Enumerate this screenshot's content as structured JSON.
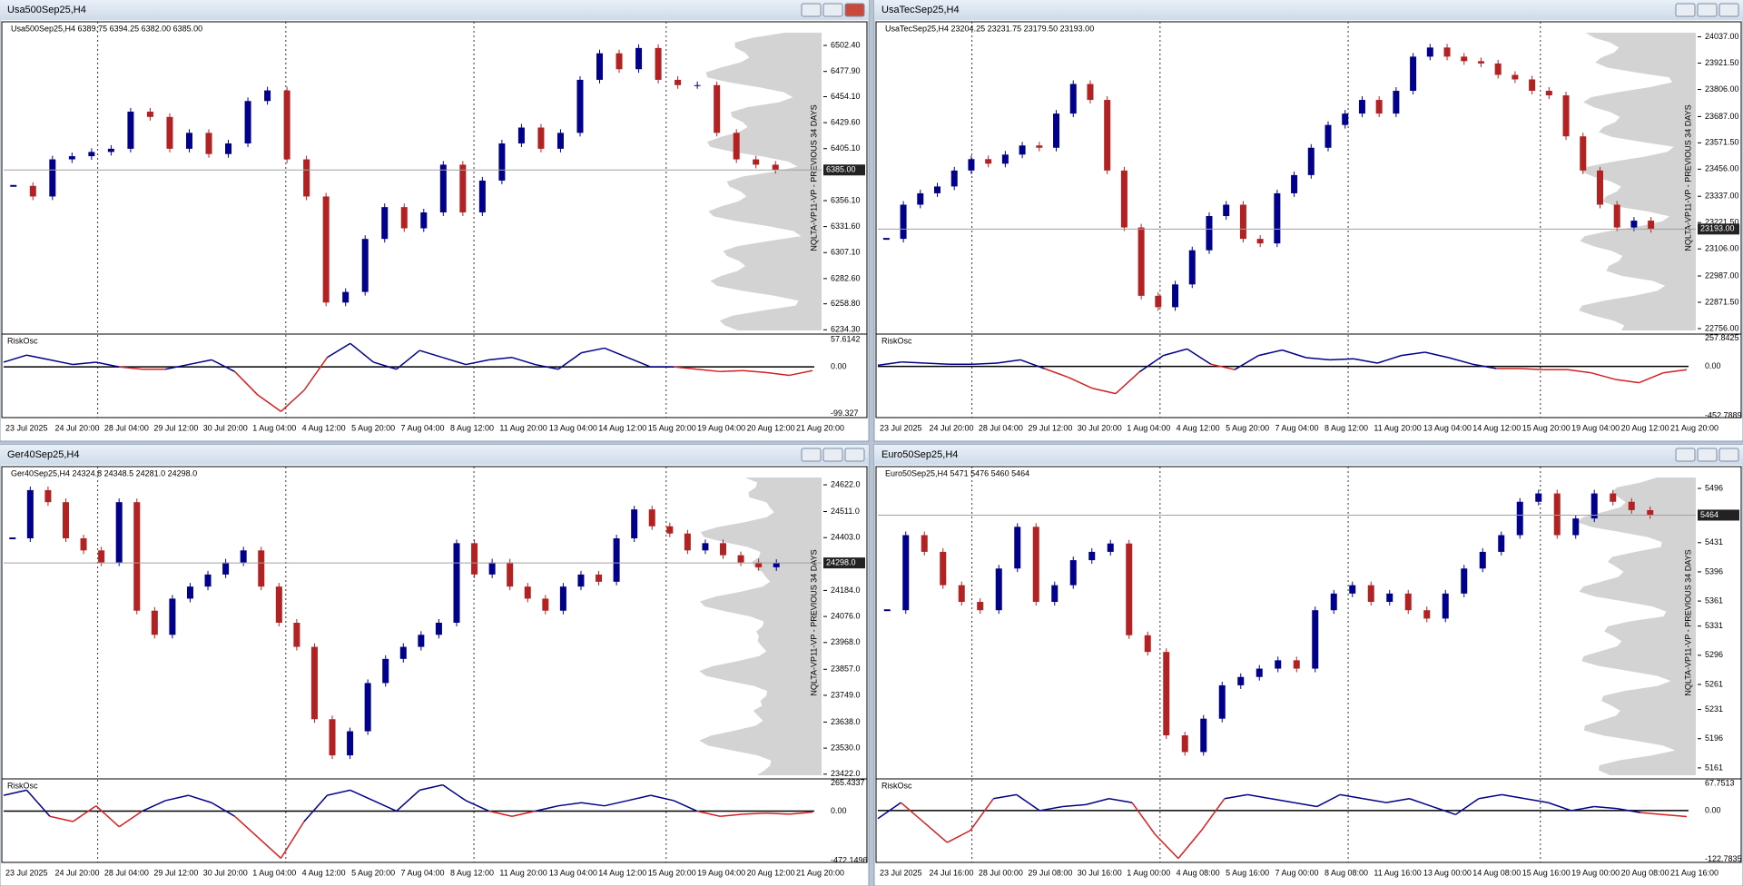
{
  "windows": [
    {
      "title": "Usa500Sep25,H4",
      "info": "Usa500Sep25,H4  6389.75 6394.25 6382.00 6385.00",
      "watermark": "NQLTA-VP11-VP - PREVIOUS 34 DAYS",
      "ylim": [
        6232,
        6523
      ],
      "yticks": [
        {
          "value": 6502.4,
          "label": "6502.40"
        },
        {
          "value": 6477.9,
          "label": "6477.90"
        },
        {
          "value": 6454.1,
          "label": "6454.10"
        },
        {
          "value": 6429.6,
          "label": "6429.60"
        },
        {
          "value": 6405.1,
          "label": "6405.10"
        },
        {
          "value": 6356.1,
          "label": "6356.10"
        },
        {
          "value": 6331.6,
          "label": "6331.60"
        },
        {
          "value": 6307.1,
          "label": "6307.10"
        },
        {
          "value": 6282.6,
          "label": "6282.60"
        },
        {
          "value": 6258.8,
          "label": "6258.80"
        },
        {
          "value": 6234.3,
          "label": "6234.30"
        }
      ],
      "current": {
        "value": 6385,
        "label": "6385.00"
      },
      "closes": [
        6370,
        6360,
        6395,
        6398,
        6402,
        6405,
        6440,
        6435,
        6405,
        6420,
        6400,
        6410,
        6450,
        6460,
        6395,
        6360,
        6260,
        6270,
        6320,
        6350,
        6330,
        6345,
        6390,
        6345,
        6375,
        6410,
        6425,
        6405,
        6420,
        6470,
        6495,
        6480,
        6500,
        6470,
        6465,
        6465,
        6420,
        6395,
        6390,
        6385
      ],
      "osc": {
        "name": "RiskOsc",
        "ylim": [
          -108,
          66
        ],
        "ticks": [
          57.6142,
          {
            "value": 0,
            "label": "0.00"
          },
          -99.327
        ],
        "values": [
          10,
          25,
          15,
          5,
          10,
          0,
          -5,
          -5,
          5,
          15,
          -10,
          -60,
          -95,
          -50,
          20,
          50,
          10,
          -5,
          35,
          20,
          5,
          15,
          20,
          5,
          -5,
          30,
          40,
          20,
          0,
          0,
          -5,
          -10,
          -8,
          -12,
          -18,
          -8
        ]
      },
      "dates": [
        "23 Jul 2025",
        "24 Jul 20:00",
        "28 Jul 04:00",
        "29 Jul 12:00",
        "30 Jul 20:00",
        "1 Aug 04:00",
        "4 Aug 12:00",
        "5 Aug 20:00",
        "7 Aug 04:00",
        "8 Aug 12:00",
        "11 Aug 20:00",
        "13 Aug 04:00",
        "14 Aug 12:00",
        "15 Aug 20:00",
        "19 Aug 04:00",
        "20 Aug 12:00",
        "21 Aug 20:00"
      ]
    },
    {
      "title": "UsaTecSep25,H4",
      "info": "UsaTecSep25,H4  23204.25 23231.75 23179.50 23193.00",
      "watermark": "NQLTA-VP11-VP - PREVIOUS 34 DAYS",
      "ylim": [
        22740,
        24095
      ],
      "yticks": [
        {
          "value": 24037,
          "label": "24037.00"
        },
        {
          "value": 23921.5,
          "label": "23921.50"
        },
        {
          "value": 23806,
          "label": "23806.00"
        },
        {
          "value": 23687,
          "label": "23687.00"
        },
        {
          "value": 23571.5,
          "label": "23571.50"
        },
        {
          "value": 23456,
          "label": "23456.00"
        },
        {
          "value": 23337,
          "label": "23337.00"
        },
        {
          "value": 23221.5,
          "label": "23221.50"
        },
        {
          "value": 23106,
          "label": "23106.00"
        },
        {
          "value": 22987,
          "label": "22987.00"
        },
        {
          "value": 22871.5,
          "label": "22871.50"
        },
        {
          "value": 22756,
          "label": "22756.00"
        }
      ],
      "current": {
        "value": 23193,
        "label": "23193.00"
      },
      "closes": [
        23150,
        23300,
        23350,
        23380,
        23450,
        23500,
        23480,
        23520,
        23560,
        23550,
        23700,
        23830,
        23760,
        23450,
        23200,
        22900,
        22850,
        22950,
        23100,
        23250,
        23300,
        23150,
        23130,
        23350,
        23430,
        23550,
        23650,
        23700,
        23760,
        23700,
        23800,
        23950,
        23990,
        23950,
        23930,
        23920,
        23870,
        23850,
        23800,
        23780,
        23600,
        23450,
        23300,
        23200,
        23230,
        23193
      ],
      "osc": {
        "name": "RiskOsc",
        "ylim": [
          -470,
          280
        ],
        "ticks": [
          257.8425,
          {
            "value": 0,
            "label": "0.00"
          },
          -452.7889
        ],
        "values": [
          10,
          40,
          30,
          20,
          20,
          30,
          60,
          -20,
          -100,
          -200,
          -250,
          -50,
          100,
          160,
          20,
          -30,
          100,
          150,
          80,
          60,
          70,
          30,
          100,
          130,
          80,
          20,
          -20,
          -20,
          -30,
          -30,
          -60,
          -120,
          -150,
          -60,
          -30
        ]
      },
      "dates": [
        "23 Jul 2025",
        "24 Jul 20:00",
        "28 Jul 04:00",
        "29 Jul 12:00",
        "30 Jul 20:00",
        "1 Aug 04:00",
        "4 Aug 12:00",
        "5 Aug 20:00",
        "7 Aug 04:00",
        "8 Aug 12:00",
        "11 Aug 20:00",
        "13 Aug 04:00",
        "14 Aug 12:00",
        "15 Aug 20:00",
        "19 Aug 04:00",
        "20 Aug 12:00",
        "21 Aug 20:00"
      ]
    },
    {
      "title": "Ger40Sep25,H4",
      "info": "Ger40Sep25,H4  24324.8 24348.5 24281.0 24298.0",
      "watermark": "NQLTA-VP11-VP - PREVIOUS 34 DAYS",
      "ylim": [
        23410,
        24690
      ],
      "yticks": [
        {
          "value": 24622,
          "label": "24622.0"
        },
        {
          "value": 24511,
          "label": "24511.0"
        },
        {
          "value": 24403,
          "label": "24403.0"
        },
        {
          "value": 24184,
          "label": "24184.0"
        },
        {
          "value": 24076,
          "label": "24076.0"
        },
        {
          "value": 23968,
          "label": "23968.0"
        },
        {
          "value": 23857,
          "label": "23857.0"
        },
        {
          "value": 23749,
          "label": "23749.0"
        },
        {
          "value": 23638,
          "label": "23638.0"
        },
        {
          "value": 23530,
          "label": "23530.0"
        },
        {
          "value": 23422,
          "label": "23422.0"
        }
      ],
      "current": {
        "value": 24298,
        "label": "24298.0"
      },
      "closes": [
        24400,
        24600,
        24550,
        24400,
        24350,
        24300,
        24550,
        24100,
        24000,
        24150,
        24200,
        24250,
        24300,
        24350,
        24200,
        24050,
        23950,
        23650,
        23500,
        23600,
        23800,
        23900,
        23950,
        24000,
        24050,
        24380,
        24250,
        24300,
        24200,
        24150,
        24100,
        24200,
        24250,
        24220,
        24400,
        24520,
        24450,
        24420,
        24350,
        24380,
        24330,
        24300,
        24280,
        24298
      ],
      "osc": {
        "name": "RiskOsc",
        "ylim": [
          -490,
          290
        ],
        "ticks": [
          265.4337,
          {
            "value": 0,
            "label": "0.00"
          },
          -472.1496
        ],
        "values": [
          150,
          200,
          -50,
          -100,
          50,
          -150,
          0,
          100,
          150,
          80,
          -50,
          -250,
          -450,
          -100,
          150,
          200,
          100,
          0,
          200,
          250,
          100,
          0,
          -50,
          0,
          50,
          80,
          50,
          100,
          150,
          100,
          0,
          -50,
          -30,
          -20,
          -30,
          -10
        ]
      },
      "dates": [
        "23 Jul 2025",
        "24 Jul 20:00",
        "28 Jul 04:00",
        "29 Jul 12:00",
        "30 Jul 20:00",
        "1 Aug 04:00",
        "4 Aug 12:00",
        "5 Aug 20:00",
        "7 Aug 04:00",
        "8 Aug 12:00",
        "11 Aug 20:00",
        "13 Aug 04:00",
        "14 Aug 12:00",
        "15 Aug 20:00",
        "19 Aug 04:00",
        "20 Aug 12:00",
        "21 Aug 20:00"
      ]
    },
    {
      "title": "Euro50Sep25,H4",
      "info": "Euro50Sep25,H4  5471 5476 5460 5464",
      "watermark": "NQLTA-VP11-VP - PREVIOUS 34 DAYS",
      "ylim": [
        5150,
        5520
      ],
      "yticks": [
        5496,
        5431,
        5396,
        5361,
        5331,
        5296,
        5261,
        5231,
        5196,
        5161
      ],
      "current": {
        "value": 5464,
        "label": "5464"
      },
      "closes": [
        5350,
        5440,
        5420,
        5380,
        5360,
        5350,
        5400,
        5450,
        5360,
        5380,
        5410,
        5420,
        5430,
        5320,
        5300,
        5200,
        5180,
        5220,
        5260,
        5270,
        5280,
        5290,
        5280,
        5350,
        5370,
        5380,
        5360,
        5370,
        5350,
        5340,
        5370,
        5400,
        5420,
        5440,
        5480,
        5490,
        5440,
        5460,
        5490,
        5480,
        5470,
        5464
      ],
      "osc": {
        "name": "RiskOsc",
        "ylim": [
          -130,
          75
        ],
        "ticks": [
          67.7513,
          {
            "value": 0,
            "label": "0.00"
          },
          -122.7835
        ],
        "values": [
          -20,
          20,
          -30,
          -80,
          -50,
          30,
          40,
          0,
          10,
          15,
          30,
          20,
          -60,
          -120,
          -50,
          30,
          40,
          30,
          20,
          10,
          40,
          30,
          20,
          30,
          10,
          -10,
          30,
          40,
          30,
          20,
          0,
          10,
          5,
          -5,
          -10,
          -15
        ]
      },
      "dates": [
        "23 Jul 2025",
        "24 Jul 16:00",
        "28 Jul 00:00",
        "29 Jul 08:00",
        "30 Jul 16:00",
        "1 Aug 00:00",
        "4 Aug 08:00",
        "5 Aug 16:00",
        "7 Aug 00:00",
        "8 Aug 08:00",
        "11 Aug 16:00",
        "13 Aug 00:00",
        "14 Aug 08:00",
        "15 Aug 16:00",
        "19 Aug 00:00",
        "20 Aug 08:00",
        "21 Aug 16:00"
      ]
    }
  ]
}
